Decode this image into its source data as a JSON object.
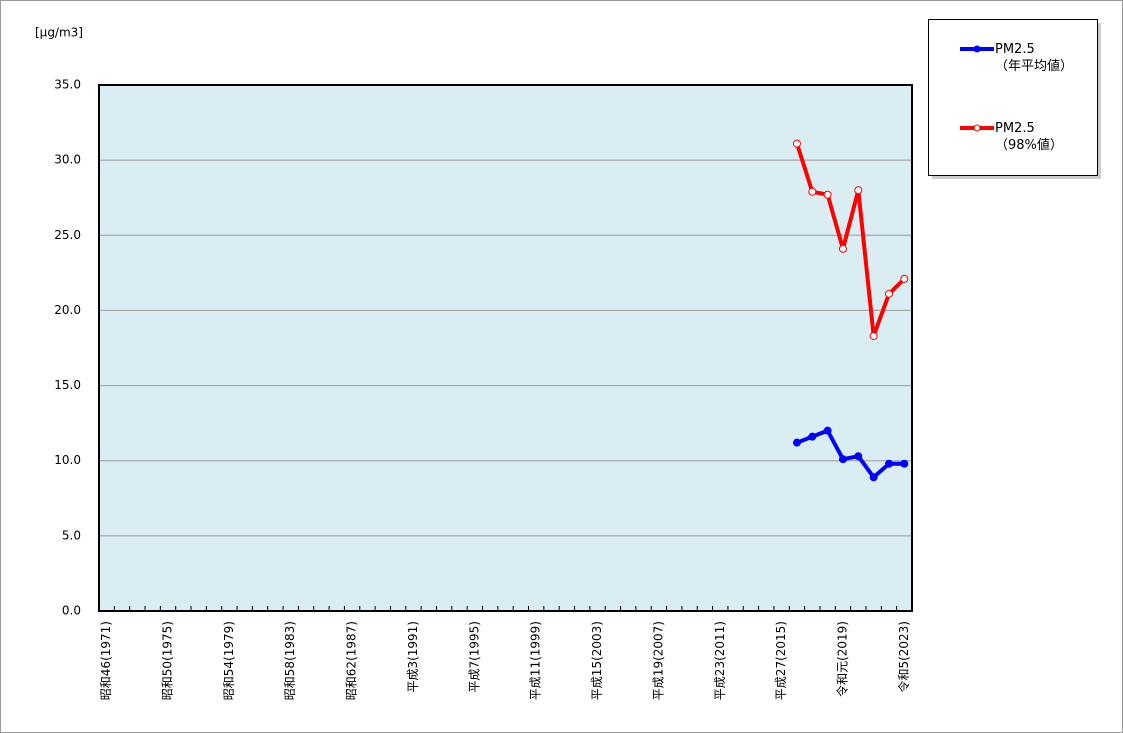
{
  "chart_data": {
    "type": "line",
    "y_label": "[µg/m3]",
    "categories": [
      "昭和46(1971)",
      null,
      null,
      null,
      "昭和50(1975)",
      null,
      null,
      null,
      "昭和54(1979)",
      null,
      null,
      null,
      "昭和58(1983)",
      null,
      null,
      null,
      "昭和62(1987)",
      null,
      null,
      null,
      "平成3(1991)",
      null,
      null,
      null,
      "平成7(1995)",
      null,
      null,
      null,
      "平成11(1999)",
      null,
      null,
      null,
      "平成15(2003)",
      null,
      null,
      null,
      "平成19(2007)",
      null,
      null,
      null,
      "平成23(2011)",
      null,
      null,
      null,
      "平成27(2015)",
      null,
      null,
      null,
      "令和元(2019)",
      null,
      null,
      null,
      "令和5(2023)"
    ],
    "series": [
      {
        "name": "PM2.5\n（年平均値）",
        "color": "#0000ff",
        "marker_fill": "#0000ff",
        "values": [
          null,
          null,
          null,
          null,
          null,
          null,
          null,
          null,
          null,
          null,
          null,
          null,
          null,
          null,
          null,
          null,
          null,
          null,
          null,
          null,
          null,
          null,
          null,
          null,
          null,
          null,
          null,
          null,
          null,
          null,
          null,
          null,
          null,
          null,
          null,
          null,
          null,
          null,
          null,
          null,
          null,
          null,
          null,
          null,
          null,
          11.2,
          11.6,
          12.0,
          10.1,
          10.3,
          8.9,
          9.8,
          9.8
        ]
      },
      {
        "name": "PM2.5\n（98%値）",
        "color": "#ff0000",
        "marker_fill": "#ffffff",
        "values": [
          null,
          null,
          null,
          null,
          null,
          null,
          null,
          null,
          null,
          null,
          null,
          null,
          null,
          null,
          null,
          null,
          null,
          null,
          null,
          null,
          null,
          null,
          null,
          null,
          null,
          null,
          null,
          null,
          null,
          null,
          null,
          null,
          null,
          null,
          null,
          null,
          null,
          null,
          null,
          null,
          null,
          null,
          null,
          null,
          null,
          31.1,
          27.9,
          27.7,
          24.1,
          28.0,
          18.3,
          21.1,
          22.1
        ]
      }
    ],
    "ylim": [
      0,
      35
    ],
    "yticks": [
      {
        "value": 0,
        "label": "0.0"
      },
      {
        "value": 5,
        "label": "5.0"
      },
      {
        "value": 10,
        "label": "10.0"
      },
      {
        "value": 15,
        "label": "15.0"
      },
      {
        "value": 20,
        "label": "20.0"
      },
      {
        "value": 25,
        "label": "25.0"
      },
      {
        "value": 30,
        "label": "30.0"
      },
      {
        "value": 35,
        "label": "35.0"
      }
    ],
    "grid": true,
    "plot_background": "#daedf3"
  }
}
